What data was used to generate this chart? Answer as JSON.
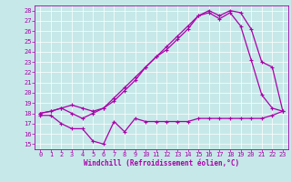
{
  "xlabel": "Windchill (Refroidissement éolien,°C)",
  "bg_color": "#c6e8e8",
  "line_color": "#aa00aa",
  "xlim": [
    -0.5,
    23.5
  ],
  "ylim": [
    14.5,
    28.5
  ],
  "yticks": [
    15,
    16,
    17,
    18,
    19,
    20,
    21,
    22,
    23,
    24,
    25,
    26,
    27,
    28
  ],
  "xticks": [
    0,
    1,
    2,
    3,
    4,
    5,
    6,
    7,
    8,
    9,
    10,
    11,
    12,
    13,
    14,
    15,
    16,
    17,
    18,
    19,
    20,
    21,
    22,
    23
  ],
  "series1_x": [
    0,
    1,
    2,
    3,
    4,
    5,
    6,
    7,
    8,
    9,
    10,
    11,
    12,
    13,
    14,
    15,
    16,
    17,
    18,
    19,
    20,
    21,
    22,
    23
  ],
  "series1_y": [
    17.8,
    17.8,
    17.0,
    16.5,
    16.5,
    15.3,
    15.0,
    17.2,
    16.2,
    17.5,
    17.2,
    17.2,
    17.2,
    17.2,
    17.2,
    17.5,
    17.5,
    17.5,
    17.5,
    17.5,
    17.5,
    17.5,
    17.8,
    18.2
  ],
  "series2_x": [
    0,
    1,
    2,
    3,
    4,
    5,
    6,
    7,
    8,
    9,
    10,
    11,
    12,
    13,
    14,
    15,
    16,
    17,
    18,
    19,
    20,
    21,
    22,
    23
  ],
  "series2_y": [
    18.0,
    18.2,
    18.5,
    18.8,
    18.5,
    18.2,
    18.5,
    19.2,
    20.2,
    21.2,
    22.5,
    23.5,
    24.2,
    25.2,
    26.2,
    27.5,
    28.0,
    27.5,
    28.0,
    27.8,
    26.2,
    23.0,
    22.5,
    18.2
  ],
  "series3_x": [
    0,
    1,
    2,
    3,
    4,
    5,
    6,
    7,
    8,
    9,
    10,
    11,
    12,
    13,
    14,
    15,
    16,
    17,
    18,
    19,
    20,
    21,
    22,
    23
  ],
  "series3_y": [
    18.0,
    18.2,
    18.5,
    18.0,
    17.5,
    18.0,
    18.5,
    19.5,
    20.5,
    21.5,
    22.5,
    23.5,
    24.5,
    25.5,
    26.5,
    27.5,
    27.8,
    27.2,
    27.8,
    26.5,
    23.2,
    19.8,
    18.5,
    18.2
  ],
  "xlabel_fontsize": 5.5,
  "tick_fontsize": 5.0,
  "line_width": 0.9,
  "marker_size": 2.5
}
